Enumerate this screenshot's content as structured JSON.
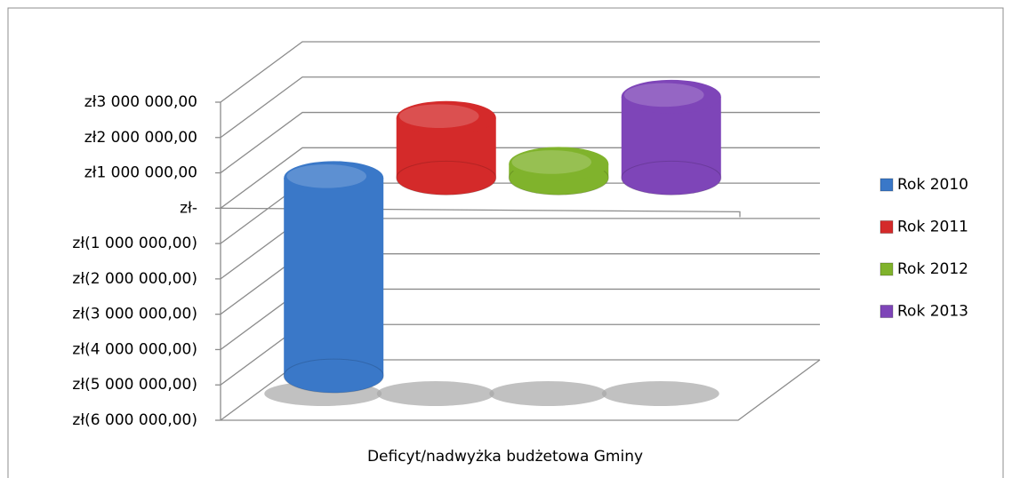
{
  "chart_data": {
    "type": "bar",
    "categories": [
      "Deficyt/nadwyżka budżetowa Gminy"
    ],
    "series": [
      {
        "name": "Rok 2010",
        "color": "#3a78c8",
        "values": [
          -5600000
        ]
      },
      {
        "name": "Rok 2011",
        "color": "#d42a2a",
        "values": [
          1700000
        ]
      },
      {
        "name": "Rok 2012",
        "color": "#80b32c",
        "values": [
          400000
        ]
      },
      {
        "name": "Rok 2013",
        "color": "#7e45b8",
        "values": [
          2300000
        ]
      }
    ],
    "ylim": [
      -6000000,
      3000000
    ],
    "yticks": [
      {
        "value": 3000000,
        "label": "zł3 000 000,00"
      },
      {
        "value": 2000000,
        "label": "zł2 000 000,00"
      },
      {
        "value": 1000000,
        "label": "zł1 000 000,00"
      },
      {
        "value": 0,
        "label": "zł-"
      },
      {
        "value": -1000000,
        "label": "zł(1 000 000,00)"
      },
      {
        "value": -2000000,
        "label": "zł(2 000 000,00)"
      },
      {
        "value": -3000000,
        "label": "zł(3 000 000,00)"
      },
      {
        "value": -4000000,
        "label": "zł(4 000 000,00)"
      },
      {
        "value": -5000000,
        "label": "zł(5 000 000,00)"
      },
      {
        "value": -6000000,
        "label": "zł(6 000 000,00)"
      }
    ],
    "grid": true,
    "legend": "right"
  }
}
